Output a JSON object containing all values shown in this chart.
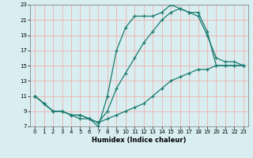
{
  "xlabel": "Humidex (Indice chaleur)",
  "xlim": [
    -0.5,
    23.5
  ],
  "ylim": [
    7,
    23
  ],
  "xticks": [
    0,
    1,
    2,
    3,
    4,
    5,
    6,
    7,
    8,
    9,
    10,
    11,
    12,
    13,
    14,
    15,
    16,
    17,
    18,
    19,
    20,
    21,
    22,
    23
  ],
  "yticks": [
    7,
    9,
    11,
    13,
    15,
    17,
    19,
    21,
    23
  ],
  "bg_color": "#d8eef0",
  "line_color": "#1a7a6e",
  "grid_color": "#f0b0b0",
  "line1_x": [
    0,
    1,
    2,
    3,
    4,
    5,
    6,
    7,
    8,
    9,
    10,
    11,
    12,
    13,
    14,
    15,
    16,
    17,
    18,
    19,
    20,
    21,
    22,
    23
  ],
  "line1_y": [
    11,
    10,
    9,
    9,
    8.5,
    8.5,
    8,
    7.5,
    8,
    8.5,
    9,
    9.5,
    10,
    11,
    12,
    13,
    13.5,
    14,
    14.5,
    14.5,
    15,
    15,
    15,
    15
  ],
  "line2_x": [
    0,
    1,
    2,
    3,
    4,
    5,
    6,
    7,
    8,
    9,
    10,
    11,
    12,
    13,
    14,
    15,
    16,
    17,
    18,
    19,
    20,
    21,
    22,
    23
  ],
  "line2_y": [
    11,
    10,
    9,
    9,
    8.5,
    8.5,
    8,
    7,
    11,
    17,
    20,
    21.5,
    21.5,
    21.5,
    22,
    23,
    22.5,
    22,
    21.5,
    19,
    16,
    15.5,
    15.5,
    15
  ],
  "line3_x": [
    0,
    1,
    2,
    3,
    4,
    5,
    6,
    7,
    8,
    9,
    10,
    11,
    12,
    13,
    14,
    15,
    16,
    17,
    18,
    19,
    20,
    21,
    22,
    23
  ],
  "line3_y": [
    11,
    10,
    9,
    9,
    8.5,
    8,
    8,
    7.5,
    9,
    12,
    14,
    16,
    18,
    19.5,
    21,
    22,
    22.5,
    22,
    22,
    19.5,
    15,
    15,
    15,
    15
  ]
}
